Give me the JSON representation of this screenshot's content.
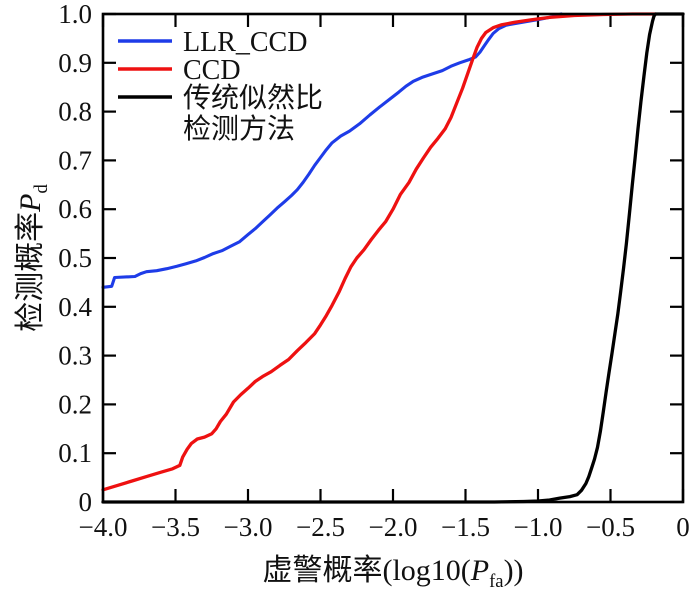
{
  "figure": {
    "background": "#ffffff",
    "frame_color": "#000000"
  },
  "chart_data": {
    "type": "line",
    "title": "",
    "xlabel_prefix": "虚警概率(log10(",
    "xlabel_var": "P",
    "xlabel_sub": "fa",
    "xlabel_suffix": "))",
    "ylabel_prefix": "检测概率",
    "ylabel_var": "P",
    "ylabel_sub": "d",
    "xlim": [
      -4,
      0
    ],
    "ylim": [
      0,
      1
    ],
    "grid": false,
    "legend_position": "upper-left",
    "x_ticks": [
      -4,
      -3.5,
      -3,
      -2.5,
      -2,
      -1.5,
      -1,
      -0.5,
      0
    ],
    "x_tick_labels": [
      "−4.0",
      "−3.5",
      "−3.0",
      "−2.5",
      "−2.0",
      "−1.5",
      "−1.0",
      "−0.5",
      "0"
    ],
    "y_ticks": [
      0,
      0.1,
      0.2,
      0.3,
      0.4,
      0.5,
      0.6,
      0.7,
      0.8,
      0.9,
      1
    ],
    "y_tick_labels": [
      "0",
      "0.1",
      "0.2",
      "0.3",
      "0.4",
      "0.5",
      "0.6",
      "0.7",
      "0.8",
      "0.9",
      "1.0"
    ],
    "series": [
      {
        "name": "LLR_CCD",
        "slug": "llr-ccd-curve",
        "color": "#1e3ce8",
        "stroke_width": 3.1,
        "legend_lines": [
          "LLR_CCD"
        ],
        "points": [
          [
            -4.0,
            0.44
          ],
          [
            -3.94,
            0.442
          ],
          [
            -3.92,
            0.46
          ],
          [
            -3.78,
            0.462
          ],
          [
            -3.74,
            0.468
          ],
          [
            -3.7,
            0.472
          ],
          [
            -3.63,
            0.474
          ],
          [
            -3.56,
            0.478
          ],
          [
            -3.49,
            0.483
          ],
          [
            -3.43,
            0.488
          ],
          [
            -3.36,
            0.494
          ],
          [
            -3.3,
            0.501
          ],
          [
            -3.24,
            0.509
          ],
          [
            -3.18,
            0.515
          ],
          [
            -3.12,
            0.524
          ],
          [
            -3.06,
            0.533
          ],
          [
            -3.0,
            0.548
          ],
          [
            -2.95,
            0.56
          ],
          [
            -2.9,
            0.574
          ],
          [
            -2.85,
            0.588
          ],
          [
            -2.8,
            0.602
          ],
          [
            -2.75,
            0.615
          ],
          [
            -2.7,
            0.628
          ],
          [
            -2.66,
            0.64
          ],
          [
            -2.62,
            0.655
          ],
          [
            -2.58,
            0.672
          ],
          [
            -2.54,
            0.69
          ],
          [
            -2.5,
            0.706
          ],
          [
            -2.46,
            0.722
          ],
          [
            -2.42,
            0.736
          ],
          [
            -2.36,
            0.75
          ],
          [
            -2.3,
            0.76
          ],
          [
            -2.23,
            0.775
          ],
          [
            -2.16,
            0.793
          ],
          [
            -2.09,
            0.81
          ],
          [
            -2.02,
            0.826
          ],
          [
            -1.96,
            0.84
          ],
          [
            -1.91,
            0.852
          ],
          [
            -1.86,
            0.862
          ],
          [
            -1.8,
            0.87
          ],
          [
            -1.73,
            0.877
          ],
          [
            -1.66,
            0.884
          ],
          [
            -1.6,
            0.893
          ],
          [
            -1.54,
            0.9
          ],
          [
            -1.48,
            0.906
          ],
          [
            -1.43,
            0.912
          ],
          [
            -1.4,
            0.922
          ],
          [
            -1.37,
            0.935
          ],
          [
            -1.34,
            0.948
          ],
          [
            -1.31,
            0.96
          ],
          [
            -1.27,
            0.97
          ],
          [
            -1.22,
            0.977
          ],
          [
            -1.15,
            0.981
          ],
          [
            -1.07,
            0.985
          ],
          [
            -0.99,
            0.989
          ],
          [
            -0.92,
            0.993
          ],
          [
            -0.87,
            0.997
          ],
          [
            -0.84,
            1.0
          ]
        ]
      },
      {
        "name": "CCD",
        "slug": "ccd-curve",
        "color": "#ee1111",
        "stroke_width": 3.3,
        "legend_lines": [
          "CCD"
        ],
        "points": [
          [
            -4.0,
            0.025
          ],
          [
            -3.9,
            0.034
          ],
          [
            -3.8,
            0.043
          ],
          [
            -3.7,
            0.052
          ],
          [
            -3.6,
            0.061
          ],
          [
            -3.52,
            0.068
          ],
          [
            -3.47,
            0.075
          ],
          [
            -3.45,
            0.092
          ],
          [
            -3.42,
            0.108
          ],
          [
            -3.39,
            0.12
          ],
          [
            -3.35,
            0.129
          ],
          [
            -3.3,
            0.133
          ],
          [
            -3.25,
            0.14
          ],
          [
            -3.22,
            0.15
          ],
          [
            -3.19,
            0.165
          ],
          [
            -3.15,
            0.18
          ],
          [
            -3.1,
            0.205
          ],
          [
            -3.05,
            0.22
          ],
          [
            -3.0,
            0.233
          ],
          [
            -2.95,
            0.247
          ],
          [
            -2.9,
            0.257
          ],
          [
            -2.84,
            0.267
          ],
          [
            -2.78,
            0.28
          ],
          [
            -2.72,
            0.292
          ],
          [
            -2.66,
            0.31
          ],
          [
            -2.6,
            0.327
          ],
          [
            -2.54,
            0.345
          ],
          [
            -2.5,
            0.363
          ],
          [
            -2.46,
            0.382
          ],
          [
            -2.42,
            0.403
          ],
          [
            -2.37,
            0.432
          ],
          [
            -2.33,
            0.458
          ],
          [
            -2.29,
            0.482
          ],
          [
            -2.25,
            0.5
          ],
          [
            -2.2,
            0.517
          ],
          [
            -2.15,
            0.538
          ],
          [
            -2.1,
            0.557
          ],
          [
            -2.05,
            0.575
          ],
          [
            -2.0,
            0.6
          ],
          [
            -1.95,
            0.63
          ],
          [
            -1.89,
            0.655
          ],
          [
            -1.84,
            0.682
          ],
          [
            -1.79,
            0.705
          ],
          [
            -1.74,
            0.727
          ],
          [
            -1.69,
            0.745
          ],
          [
            -1.64,
            0.765
          ],
          [
            -1.6,
            0.788
          ],
          [
            -1.56,
            0.818
          ],
          [
            -1.52,
            0.848
          ],
          [
            -1.48,
            0.882
          ],
          [
            -1.45,
            0.908
          ],
          [
            -1.42,
            0.932
          ],
          [
            -1.39,
            0.95
          ],
          [
            -1.36,
            0.962
          ],
          [
            -1.31,
            0.972
          ],
          [
            -1.25,
            0.978
          ],
          [
            -1.16,
            0.983
          ],
          [
            -1.05,
            0.988
          ],
          [
            -0.92,
            0.993
          ],
          [
            -0.75,
            0.997
          ],
          [
            -0.55,
            0.999
          ],
          [
            -0.35,
            1.0
          ],
          [
            -0.19,
            1.0
          ]
        ]
      },
      {
        "name": "传统似然比检测方法",
        "slug": "traditional-likelihood-ratio-curve",
        "color": "#000000",
        "stroke_width": 3.3,
        "legend_lines": [
          "传统似然比",
          "检测方法"
        ],
        "points": [
          [
            -4.0,
            0.0
          ],
          [
            -1.3,
            0.0
          ],
          [
            -1.1,
            0.001
          ],
          [
            -1.0,
            0.002
          ],
          [
            -0.92,
            0.004
          ],
          [
            -0.85,
            0.008
          ],
          [
            -0.78,
            0.011
          ],
          [
            -0.73,
            0.015
          ],
          [
            -0.7,
            0.024
          ],
          [
            -0.67,
            0.038
          ],
          [
            -0.65,
            0.052
          ],
          [
            -0.63,
            0.07
          ],
          [
            -0.61,
            0.088
          ],
          [
            -0.59,
            0.112
          ],
          [
            -0.57,
            0.145
          ],
          [
            -0.55,
            0.185
          ],
          [
            -0.53,
            0.225
          ],
          [
            -0.51,
            0.265
          ],
          [
            -0.49,
            0.305
          ],
          [
            -0.47,
            0.345
          ],
          [
            -0.45,
            0.385
          ],
          [
            -0.43,
            0.43
          ],
          [
            -0.41,
            0.478
          ],
          [
            -0.39,
            0.53
          ],
          [
            -0.37,
            0.59
          ],
          [
            -0.35,
            0.65
          ],
          [
            -0.33,
            0.705
          ],
          [
            -0.31,
            0.765
          ],
          [
            -0.29,
            0.822
          ],
          [
            -0.27,
            0.872
          ],
          [
            -0.25,
            0.92
          ],
          [
            -0.23,
            0.958
          ],
          [
            -0.21,
            0.985
          ],
          [
            -0.2,
            0.996
          ],
          [
            -0.19,
            1.0
          ],
          [
            0.0,
            1.0
          ]
        ]
      }
    ]
  }
}
